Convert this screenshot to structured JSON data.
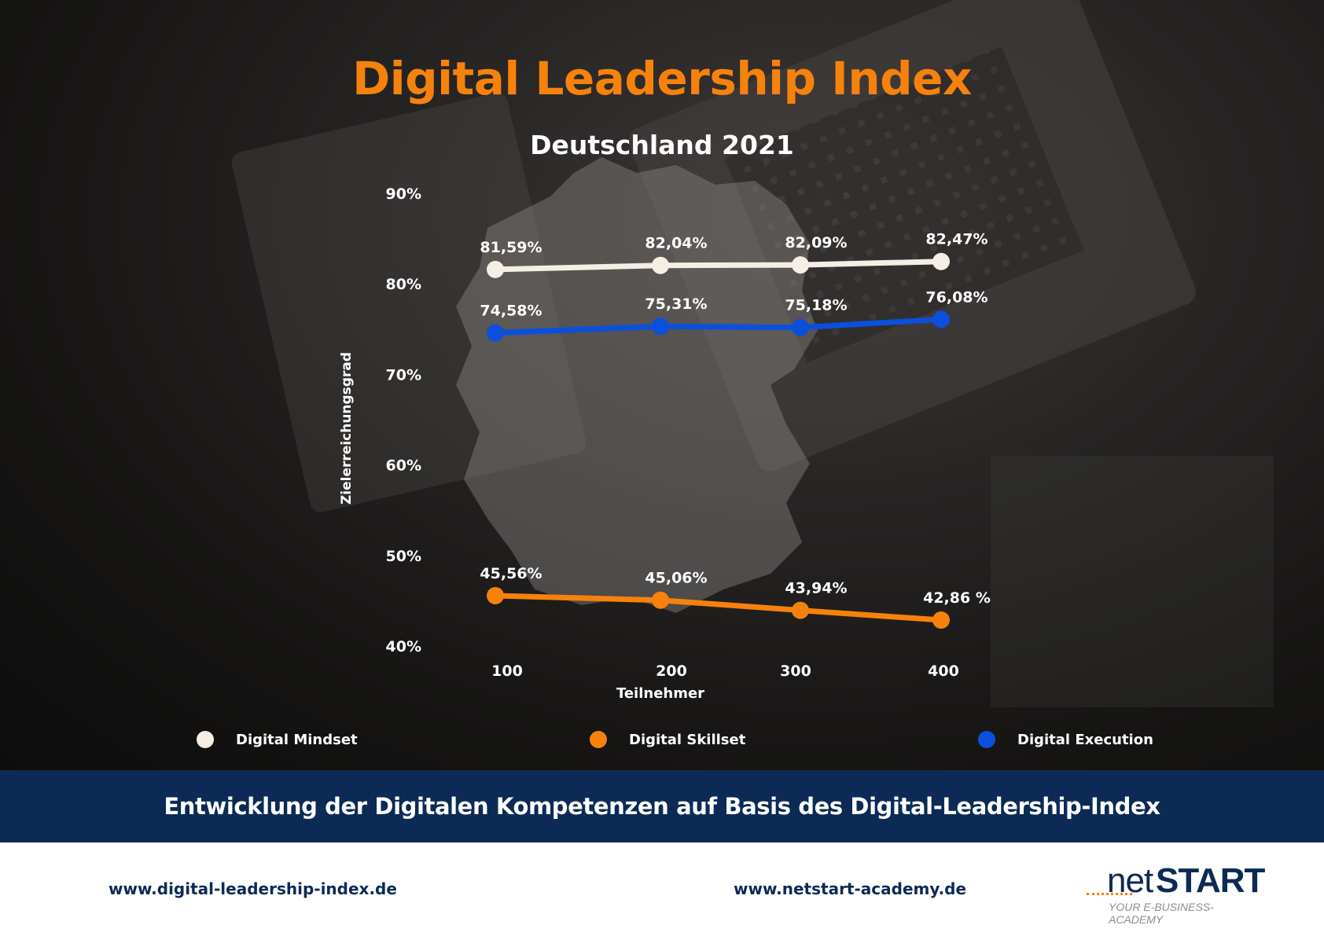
{
  "header": {
    "title": "Digital Leadership Index",
    "subtitle": "Deutschland 2021"
  },
  "chart_data": {
    "type": "line",
    "title": "Digital Leadership Index",
    "subtitle": "Deutschland 2021",
    "xlabel": "Teilnehmer",
    "ylabel": "Zielerreichungsgrad",
    "categories": [
      "100",
      "200",
      "300",
      "400"
    ],
    "yticks": [
      "40%",
      "50%",
      "60%",
      "70%",
      "80%",
      "90%"
    ],
    "ylim": [
      40,
      90
    ],
    "grid": false,
    "legend_position": "bottom",
    "series": [
      {
        "name": "Digital Mindset",
        "color": "#f4eee4",
        "values": [
          81.59,
          82.04,
          82.09,
          82.47
        ],
        "labels": [
          "81,59%",
          "82,04%",
          "82,09%",
          "82,47%"
        ]
      },
      {
        "name": "Digital Execution",
        "color": "#0b4fdc",
        "values": [
          74.58,
          75.31,
          75.18,
          76.08
        ],
        "labels": [
          "74,58%",
          "75,31%",
          "75,18%",
          "76,08%"
        ]
      },
      {
        "name": "Digital Skillset",
        "color": "#f6820c",
        "values": [
          45.56,
          45.06,
          43.94,
          42.86
        ],
        "labels": [
          "45,56%",
          "45,06%",
          "43,94%",
          "42,86 %"
        ]
      }
    ]
  },
  "legend": {
    "mindset": "Digital Mindset",
    "skillset": "Digital Skillset",
    "execution": "Digital Execution"
  },
  "band": {
    "text": "Entwicklung der Digitalen Kompetenzen auf Basis des Digital-Leadership-Index"
  },
  "footer": {
    "url_left": "www.digital-leadership-index.de",
    "url_right": "www.netstart-academy.de",
    "logo_net": "net",
    "logo_start": "START",
    "logo_tagline": "YOUR E-BUSINESS-ACADEMY"
  }
}
